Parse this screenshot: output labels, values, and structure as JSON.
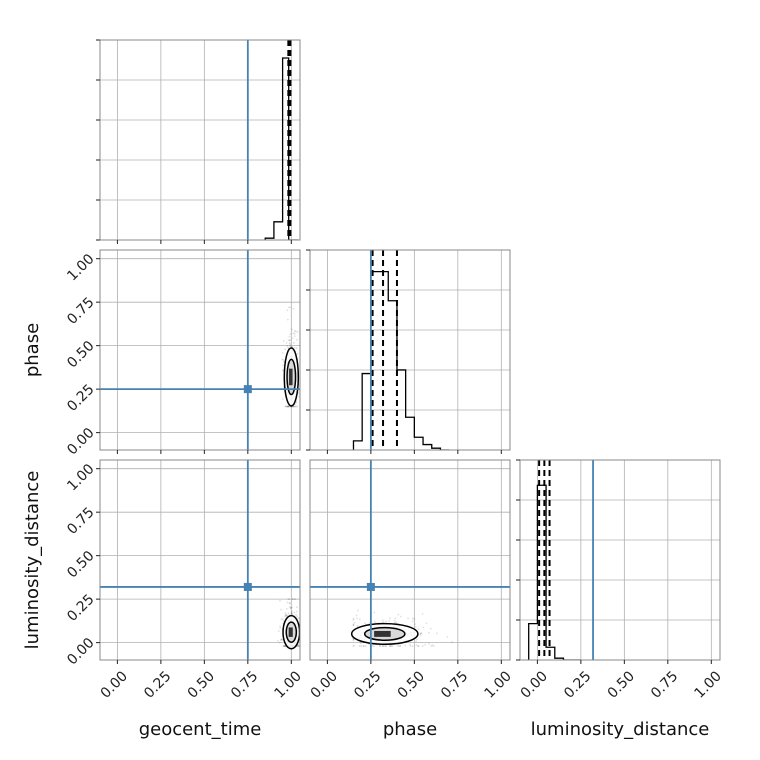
{
  "chart_data": {
    "type": "corner",
    "parameters": [
      "geocent_time",
      "phase",
      "luminosity_distance"
    ],
    "truths": {
      "geocent_time": 0.75,
      "phase": 0.25,
      "luminosity_distance": 0.32
    },
    "truth_color": "#4682b4",
    "axis_range": [
      -0.1,
      1.05
    ],
    "tick_values": [
      0.0,
      0.25,
      0.5,
      0.75,
      1.0
    ],
    "tick_labels": [
      "0.00",
      "0.25",
      "0.50",
      "0.75",
      "1.00"
    ],
    "histograms": [
      {
        "parameter": "geocent_time",
        "bin_edges": [
          0.85,
          0.9,
          0.95,
          0.985,
          1.04
        ],
        "heights": [
          0.01,
          0.1,
          1.0,
          0.0
        ],
        "quantiles": [
          0.983,
          0.99,
          0.995
        ]
      },
      {
        "parameter": "phase",
        "bin_edges": [
          0.15,
          0.2,
          0.25,
          0.3,
          0.35,
          0.4,
          0.45,
          0.5,
          0.55,
          0.6,
          0.65,
          0.7
        ],
        "heights": [
          0.05,
          0.42,
          0.98,
          0.98,
          0.82,
          0.44,
          0.18,
          0.07,
          0.03,
          0.01,
          0.0
        ],
        "quantiles": [
          0.26,
          0.32,
          0.4
        ]
      },
      {
        "parameter": "luminosity_distance",
        "bin_edges": [
          -0.05,
          0.0,
          0.05,
          0.1,
          0.15,
          0.2,
          0.25
        ],
        "heights": [
          0.2,
          0.96,
          0.07,
          0.01,
          0.0,
          0.0
        ],
        "quantiles": [
          0.01,
          0.04,
          0.07
        ]
      }
    ],
    "scatter_panels": [
      {
        "x": "geocent_time",
        "y": "phase",
        "x_center": 1.0,
        "y_center": 0.32,
        "x_spread": 0.015,
        "y_spread": 0.07,
        "x_extent": [
          0.9,
          1.05
        ],
        "y_extent": [
          0.15,
          0.72
        ]
      },
      {
        "x": "geocent_time",
        "y": "luminosity_distance",
        "x_center": 1.0,
        "y_center": 0.06,
        "x_spread": 0.02,
        "y_spread": 0.04,
        "x_extent": [
          0.9,
          1.05
        ],
        "y_extent": [
          -0.02,
          0.25
        ]
      },
      {
        "x": "phase",
        "y": "luminosity_distance",
        "x_center": 0.33,
        "y_center": 0.05,
        "x_spread": 0.08,
        "y_spread": 0.025,
        "x_extent": [
          0.15,
          0.75
        ],
        "y_extent": [
          -0.02,
          0.2
        ]
      }
    ]
  }
}
